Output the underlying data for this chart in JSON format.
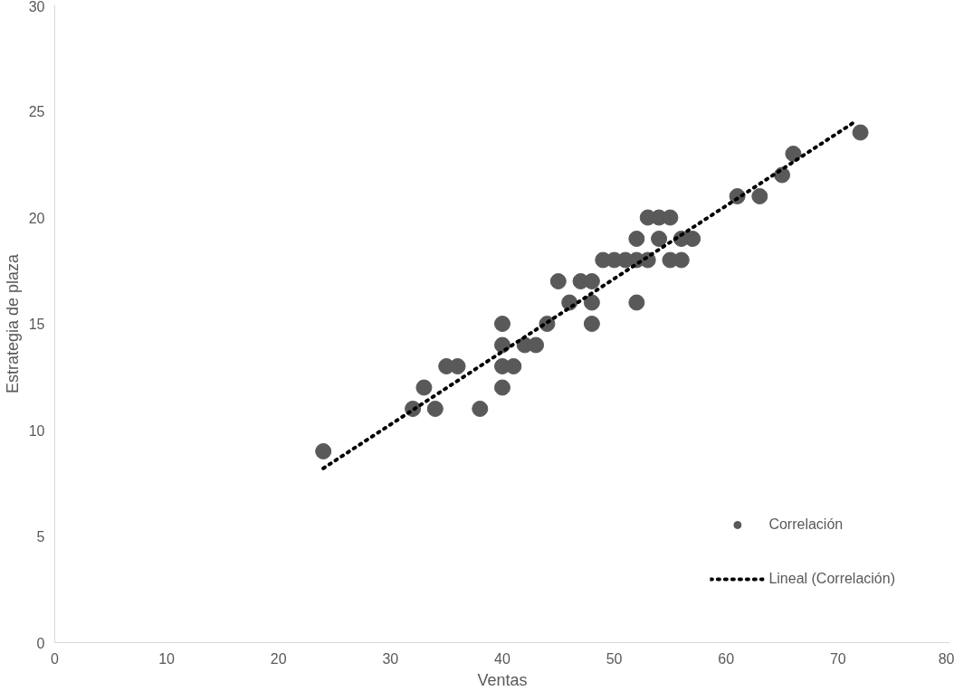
{
  "chart_data": {
    "type": "scatter",
    "xlabel": "Ventas",
    "ylabel": "Estrategia de plaza",
    "xlim": [
      0,
      80
    ],
    "ylim": [
      0,
      30
    ],
    "xticks": [
      0,
      10,
      20,
      30,
      40,
      50,
      60,
      70,
      80
    ],
    "yticks": [
      0,
      5,
      10,
      15,
      20,
      25,
      30
    ],
    "grid": false,
    "legend": "bottom right",
    "series": [
      {
        "name": "Correlación",
        "marker": "circle",
        "color": "#595959",
        "x": [
          24,
          32,
          33,
          34,
          35,
          36,
          38,
          40,
          40,
          40,
          40,
          41,
          42,
          43,
          44,
          45,
          46,
          47,
          48,
          48,
          48,
          49,
          50,
          51,
          52,
          52,
          52,
          53,
          53,
          54,
          54,
          55,
          55,
          56,
          56,
          57,
          61,
          63,
          65,
          66,
          72
        ],
        "values": [
          9,
          11,
          12,
          11,
          13,
          13,
          11,
          15,
          14,
          13,
          12,
          13,
          14,
          14,
          15,
          17,
          16,
          17,
          17,
          16,
          15,
          18,
          18,
          18,
          19,
          18,
          16,
          20,
          18,
          20,
          19,
          20,
          18,
          19,
          18,
          19,
          21,
          21,
          22,
          23,
          24
        ]
      },
      {
        "name": "Lineal (Correlación)",
        "type": "line",
        "color": "#000000",
        "line_style": "dotted",
        "x": [
          24,
          71.5
        ],
        "values": [
          8.2,
          24.5
        ]
      }
    ]
  }
}
